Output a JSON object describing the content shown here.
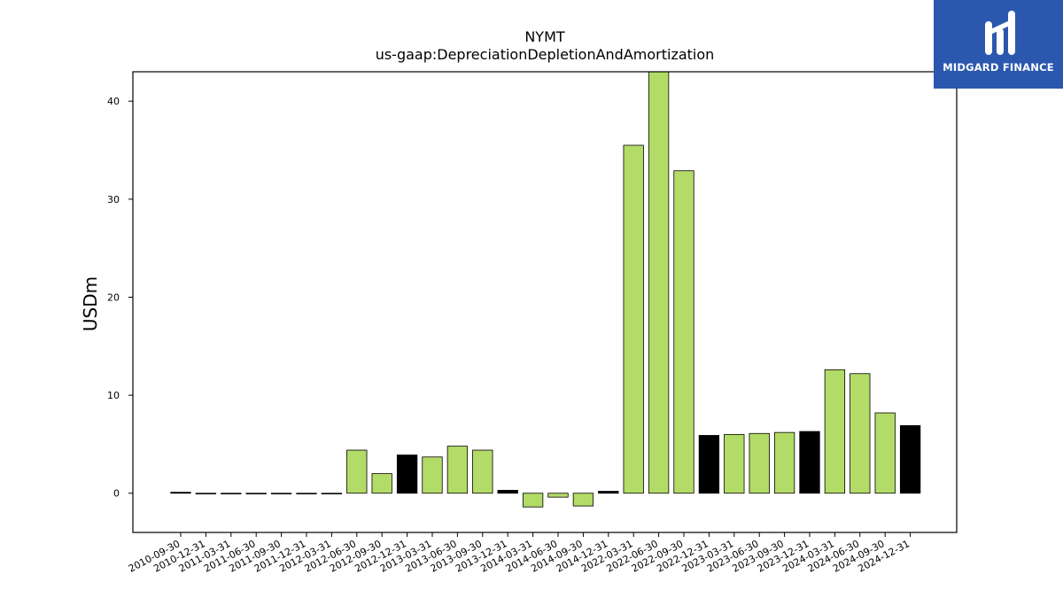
{
  "title": "NYMT",
  "subtitle": "us-gaap:DepreciationDepletionAndAmortization",
  "logo": {
    "text": "MIDGARD FINANCE",
    "icon": "midgard-logo-icon",
    "background": "#2b58ae"
  },
  "colors": {
    "actual": "#b3db67",
    "highlight": "#000000"
  },
  "chart_data": {
    "type": "bar",
    "title": "NYMT",
    "subtitle": "us-gaap:DepreciationDepletionAndAmortization",
    "xlabel": "",
    "ylabel": "USDm",
    "ylim": [
      -4.0,
      43.0
    ],
    "yticks": [
      0,
      10,
      20,
      30,
      40
    ],
    "grid": false,
    "categories": [
      "2010-09-30",
      "2010-12-31",
      "2011-03-31",
      "2011-06-30",
      "2011-09-30",
      "2011-12-31",
      "2012-03-31",
      "2012-06-30",
      "2012-09-30",
      "2012-12-31",
      "2013-03-31",
      "2013-06-30",
      "2013-09-30",
      "2013-12-31",
      "2014-03-31",
      "2014-06-30",
      "2014-09-30",
      "2014-12-31",
      "2022-03-31",
      "2022-06-30",
      "2022-09-30",
      "2022-12-31",
      "2023-03-31",
      "2023-06-30",
      "2023-09-30",
      "2023-12-31",
      "2024-03-31",
      "2024-06-30",
      "2024-09-30",
      "2024-12-31"
    ],
    "values": [
      0.1,
      0.0,
      0.0,
      0.0,
      0.0,
      0.0,
      0.0,
      4.4,
      2.0,
      3.9,
      3.7,
      4.8,
      4.4,
      0.3,
      -1.4,
      -0.4,
      -1.3,
      0.2,
      35.5,
      43.0,
      32.9,
      5.9,
      6.0,
      6.1,
      6.2,
      6.3,
      12.6,
      12.2,
      8.2,
      6.9
    ],
    "bar_colors": [
      "#000000",
      "#b3db67",
      "#b3db67",
      "#b3db67",
      "#b3db67",
      "#b3db67",
      "#b3db67",
      "#b3db67",
      "#b3db67",
      "#000000",
      "#b3db67",
      "#b3db67",
      "#b3db67",
      "#000000",
      "#b3db67",
      "#b3db67",
      "#b3db67",
      "#000000",
      "#b3db67",
      "#b3db67",
      "#b3db67",
      "#000000",
      "#b3db67",
      "#b3db67",
      "#b3db67",
      "#000000",
      "#b3db67",
      "#b3db67",
      "#b3db67",
      "#000000"
    ]
  }
}
